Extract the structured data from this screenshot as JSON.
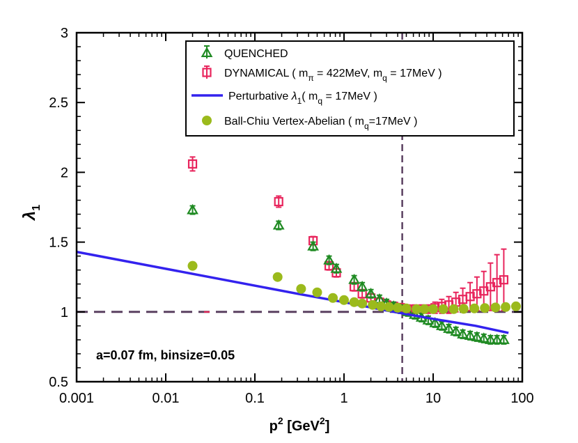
{
  "chart_data": {
    "type": "scatter",
    "xscale": "log",
    "xlim": [
      0.001,
      100
    ],
    "ylim": [
      0.5,
      3
    ],
    "xticks": [
      0.001,
      0.01,
      0.1,
      1,
      10,
      100
    ],
    "xtick_labels": [
      "0.001",
      "0.01",
      "0.1",
      "1",
      "10",
      "100"
    ],
    "yticks": [
      0.5,
      1,
      1.5,
      2,
      2.5,
      3
    ],
    "ytick_labels": [
      "0.5",
      "1",
      "1.5",
      "2",
      "2.5",
      "3"
    ],
    "xlabel": {
      "base": "p",
      "sup": "2",
      "unit_open": " [GeV",
      "unit_sup": "2",
      "unit_close": "]"
    },
    "ylabel": {
      "base": "λ",
      "sub": "1"
    },
    "annotation": "a=0.07 fm, binsize=0.05",
    "reference_lines": {
      "horizontal_y": 1,
      "vertical_x": 4.5,
      "color": "#5a4060"
    },
    "colors": {
      "quenched": "#1f8a22",
      "dynamical": "#e8245c",
      "perturbative": "#3322ee",
      "ball_chiu": "#9bba1c"
    },
    "legend": {
      "position": "top-right",
      "items": [
        {
          "key": "quenched",
          "parts": [
            {
              "t": "QUENCHED"
            }
          ]
        },
        {
          "key": "dynamical",
          "parts": [
            {
              "t": "DYNAMICAL ( m"
            },
            {
              "t": "π",
              "sub": true
            },
            {
              "t": " = 422MeV, m"
            },
            {
              "t": "q",
              "sub": true
            },
            {
              "t": " = 17MeV )"
            }
          ]
        },
        {
          "key": "perturbative",
          "parts": [
            {
              "t": "Perturbative "
            },
            {
              "t": "λ",
              "italic": true
            },
            {
              "t": "1",
              "sub": true
            },
            {
              "t": "( m"
            },
            {
              "t": "q",
              "sub": true
            },
            {
              "t": " = 17MeV )"
            }
          ]
        },
        {
          "key": "ball_chiu",
          "parts": [
            {
              "t": "Ball-Chiu Vertex-Abelian ( m"
            },
            {
              "t": "q",
              "sub": true
            },
            {
              "t": "=17MeV )"
            }
          ]
        }
      ]
    },
    "series": [
      {
        "name": "QUENCHED",
        "key": "quenched",
        "marker": "triangle",
        "points": [
          {
            "x": 0.02,
            "y": 1.73,
            "err": 0.03
          },
          {
            "x": 0.185,
            "y": 1.62,
            "err": 0.03
          },
          {
            "x": 0.45,
            "y": 1.47,
            "err": 0.03
          },
          {
            "x": 0.68,
            "y": 1.37,
            "err": 0.03
          },
          {
            "x": 0.82,
            "y": 1.31,
            "err": 0.03
          },
          {
            "x": 1.3,
            "y": 1.23,
            "err": 0.03
          },
          {
            "x": 1.6,
            "y": 1.18,
            "err": 0.03
          },
          {
            "x": 2.0,
            "y": 1.13,
            "err": 0.03
          },
          {
            "x": 2.5,
            "y": 1.09,
            "err": 0.03
          },
          {
            "x": 3.0,
            "y": 1.06,
            "err": 0.03
          },
          {
            "x": 3.6,
            "y": 1.04,
            "err": 0.03
          },
          {
            "x": 4.3,
            "y": 1.02,
            "err": 0.03
          },
          {
            "x": 5.2,
            "y": 1.0,
            "err": 0.03
          },
          {
            "x": 6.2,
            "y": 0.98,
            "err": 0.03
          },
          {
            "x": 7.4,
            "y": 0.96,
            "err": 0.03
          },
          {
            "x": 8.8,
            "y": 0.94,
            "err": 0.03
          },
          {
            "x": 10.5,
            "y": 0.92,
            "err": 0.03
          },
          {
            "x": 12.5,
            "y": 0.9,
            "err": 0.03
          },
          {
            "x": 15.0,
            "y": 0.88,
            "err": 0.03
          },
          {
            "x": 18.0,
            "y": 0.86,
            "err": 0.03
          },
          {
            "x": 21.5,
            "y": 0.84,
            "err": 0.03
          },
          {
            "x": 26.0,
            "y": 0.83,
            "err": 0.03
          },
          {
            "x": 31.0,
            "y": 0.82,
            "err": 0.03
          },
          {
            "x": 37.0,
            "y": 0.81,
            "err": 0.03
          },
          {
            "x": 44.0,
            "y": 0.8,
            "err": 0.03
          },
          {
            "x": 52.0,
            "y": 0.8,
            "err": 0.03
          },
          {
            "x": 62.0,
            "y": 0.8,
            "err": 0.03
          }
        ]
      },
      {
        "name": "DYNAMICAL ( m_pi = 422MeV, m_q = 17MeV )",
        "key": "dynamical",
        "marker": "square",
        "points": [
          {
            "x": 0.02,
            "y": 2.06,
            "err": 0.05
          },
          {
            "x": 0.185,
            "y": 1.79,
            "err": 0.04
          },
          {
            "x": 0.45,
            "y": 1.51,
            "err": 0.03
          },
          {
            "x": 0.68,
            "y": 1.33,
            "err": 0.03
          },
          {
            "x": 0.82,
            "y": 1.28,
            "err": 0.03
          },
          {
            "x": 1.3,
            "y": 1.18,
            "err": 0.03
          },
          {
            "x": 1.6,
            "y": 1.13,
            "err": 0.03
          },
          {
            "x": 2.0,
            "y": 1.1,
            "err": 0.03
          },
          {
            "x": 2.5,
            "y": 1.07,
            "err": 0.03
          },
          {
            "x": 3.0,
            "y": 1.05,
            "err": 0.03
          },
          {
            "x": 3.6,
            "y": 1.04,
            "err": 0.03
          },
          {
            "x": 4.3,
            "y": 1.03,
            "err": 0.03
          },
          {
            "x": 5.2,
            "y": 1.02,
            "err": 0.03
          },
          {
            "x": 6.2,
            "y": 1.02,
            "err": 0.03
          },
          {
            "x": 7.4,
            "y": 1.02,
            "err": 0.03
          },
          {
            "x": 8.8,
            "y": 1.02,
            "err": 0.03
          },
          {
            "x": 10.5,
            "y": 1.03,
            "err": 0.04
          },
          {
            "x": 12.5,
            "y": 1.04,
            "err": 0.05
          },
          {
            "x": 15.0,
            "y": 1.05,
            "err": 0.06
          },
          {
            "x": 18.0,
            "y": 1.07,
            "err": 0.07
          },
          {
            "x": 21.5,
            "y": 1.09,
            "err": 0.08
          },
          {
            "x": 26.0,
            "y": 1.11,
            "err": 0.1
          },
          {
            "x": 31.0,
            "y": 1.13,
            "err": 0.12
          },
          {
            "x": 37.0,
            "y": 1.15,
            "err": 0.14
          },
          {
            "x": 44.0,
            "y": 1.18,
            "err": 0.17
          },
          {
            "x": 52.0,
            "y": 1.21,
            "err": 0.2
          },
          {
            "x": 62.0,
            "y": 1.23,
            "err": 0.22
          }
        ]
      },
      {
        "name": "Perturbative λ1 ( m_q = 17MeV )",
        "key": "perturbative",
        "marker": "line",
        "points": [
          {
            "x": 0.001,
            "y": 1.43
          },
          {
            "x": 0.3,
            "y": 1.13
          },
          {
            "x": 1,
            "y": 1.07
          },
          {
            "x": 3,
            "y": 1.01
          },
          {
            "x": 10,
            "y": 0.95
          },
          {
            "x": 30,
            "y": 0.9
          },
          {
            "x": 70,
            "y": 0.85
          }
        ]
      },
      {
        "name": "Ball-Chiu Vertex-Abelian ( m_q=17MeV )",
        "key": "ball_chiu",
        "marker": "circle",
        "points": [
          {
            "x": 0.02,
            "y": 1.33
          },
          {
            "x": 0.18,
            "y": 1.25
          },
          {
            "x": 0.33,
            "y": 1.165
          },
          {
            "x": 0.5,
            "y": 1.14
          },
          {
            "x": 0.75,
            "y": 1.1
          },
          {
            "x": 1.0,
            "y": 1.085
          },
          {
            "x": 1.3,
            "y": 1.07
          },
          {
            "x": 1.6,
            "y": 1.06
          },
          {
            "x": 2.1,
            "y": 1.05
          },
          {
            "x": 2.6,
            "y": 1.04
          },
          {
            "x": 3.2,
            "y": 1.035
          },
          {
            "x": 4.0,
            "y": 1.03
          },
          {
            "x": 5.0,
            "y": 1.025
          },
          {
            "x": 6.5,
            "y": 1.02
          },
          {
            "x": 8.0,
            "y": 1.02
          },
          {
            "x": 10.0,
            "y": 1.02
          },
          {
            "x": 13.0,
            "y": 1.02
          },
          {
            "x": 17.0,
            "y": 1.02
          },
          {
            "x": 22.0,
            "y": 1.022
          },
          {
            "x": 29.0,
            "y": 1.025
          },
          {
            "x": 38.0,
            "y": 1.028
          },
          {
            "x": 50.0,
            "y": 1.032
          },
          {
            "x": 65.0,
            "y": 1.035
          },
          {
            "x": 85.0,
            "y": 1.04
          }
        ]
      }
    ]
  }
}
